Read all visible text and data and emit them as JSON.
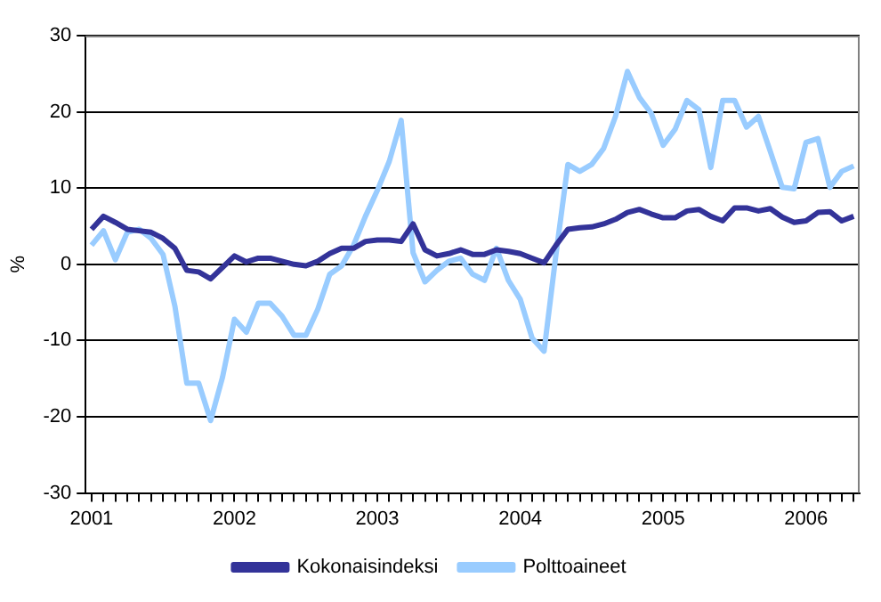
{
  "chart_data": {
    "type": "line",
    "ylabel": "%",
    "categories": [
      "2001",
      null,
      null,
      null,
      null,
      null,
      null,
      null,
      null,
      null,
      null,
      null,
      "2002",
      null,
      null,
      null,
      null,
      null,
      null,
      null,
      null,
      null,
      null,
      null,
      "2003",
      null,
      null,
      null,
      null,
      null,
      null,
      null,
      null,
      null,
      null,
      null,
      "2004",
      null,
      null,
      null,
      null,
      null,
      null,
      null,
      null,
      null,
      null,
      null,
      "2005",
      null,
      null,
      null,
      null,
      null,
      null,
      null,
      null,
      null,
      null,
      null,
      "2006",
      null,
      null,
      null,
      null
    ],
    "series": [
      {
        "name": "Kokonaisindeksi",
        "color": "#333399",
        "values": [
          4.6,
          6.3,
          5.5,
          4.6,
          4.4,
          4.2,
          3.4,
          2.1,
          -0.8,
          -1.0,
          -1.9,
          -0.4,
          1.1,
          0.3,
          0.8,
          0.8,
          0.4,
          0,
          -0.2,
          0.4,
          1.4,
          2.1,
          2.1,
          3.0,
          3.2,
          3.2,
          3.0,
          5.3,
          1.9,
          1.1,
          1.4,
          1.9,
          1.3,
          1.3,
          1.9,
          1.7,
          1.4,
          0.8,
          0.2,
          2.5,
          4.6,
          4.8,
          4.9,
          5.3,
          5.9,
          6.8,
          7.2,
          6.6,
          6.1,
          6.1,
          7.0,
          7.2,
          6.3,
          5.7,
          7.4,
          7.4,
          7.0,
          7.3,
          6.2,
          5.5,
          5.7,
          6.8,
          6.9,
          5.7,
          6.3
        ]
      },
      {
        "name": "Polttoaineet",
        "color": "#99ccff",
        "values": [
          2.5,
          4.4,
          0.6,
          4.2,
          4.6,
          3.4,
          1.3,
          -5.5,
          -15.6,
          -15.6,
          -20.5,
          -14.8,
          -7.2,
          -8.9,
          -5.1,
          -5.1,
          -6.8,
          -9.3,
          -9.3,
          -5.9,
          -1.3,
          -0.2,
          2.5,
          6.3,
          9.7,
          13.5,
          18.9,
          1.5,
          -2.3,
          -0.8,
          0.4,
          0.8,
          -1.3,
          -2.1,
          2.1,
          -2.1,
          -4.6,
          -9.7,
          -11.4,
          1.3,
          13.1,
          12.2,
          13.1,
          15.2,
          19.4,
          25.3,
          21.9,
          19.8,
          15.6,
          17.7,
          21.5,
          20.3,
          12.7,
          21.5,
          21.5,
          18.0,
          19.4,
          14.8,
          10.1,
          9.9,
          16.0,
          16.5,
          10.1,
          12.2,
          12.9
        ]
      }
    ],
    "ylim": [
      -30,
      30
    ],
    "yticks": [
      -30,
      -20,
      -10,
      0,
      10,
      20,
      30
    ],
    "grid": "y",
    "legend": "bottom",
    "marker": "none",
    "line_style": "solid"
  }
}
